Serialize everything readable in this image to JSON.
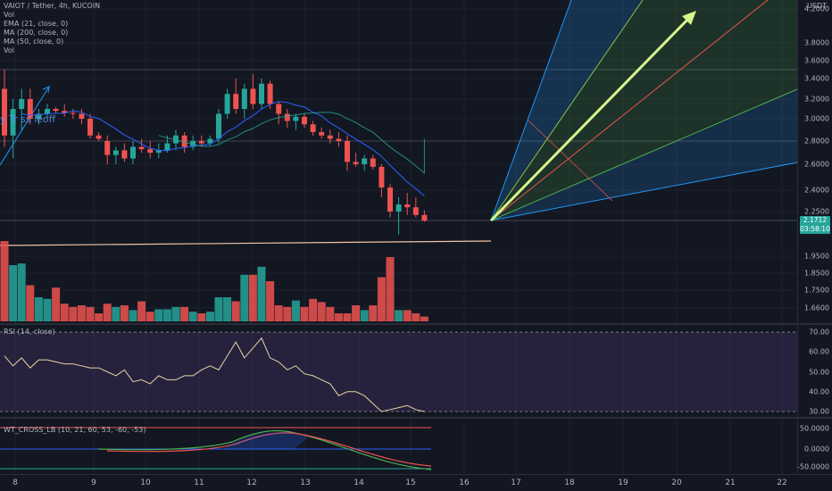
{
  "header": {
    "symbol_line": "VAIOT / Tether, 4h, KUCOIN",
    "indicators": [
      "Vol",
      "EMA (21, close, 0)",
      "MA (200, close, 0)",
      "MA (50, close, 0)",
      "Vol"
    ],
    "currency": "USDT",
    "overlay_text": "y Tr ss    leoff"
  },
  "price_axis": {
    "ticks": [
      "4.2000",
      "3.8000",
      "3.6000",
      "3.4000",
      "3.2000",
      "3.0000",
      "2.8000",
      "2.6000",
      "2.4000",
      "2.2500",
      "1.9500",
      "1.8500",
      "1.7500",
      "1.6600"
    ],
    "current_price": "2.1712",
    "countdown": "03:58:10"
  },
  "rsi": {
    "label": "RSI (14, close)",
    "ticks": [
      "70.00",
      "60.00",
      "50.00",
      "40.00",
      "30.00"
    ]
  },
  "wt": {
    "label": "WT_CROSS_LB (10, 21, 60, 53, -60, -53)",
    "ticks": [
      "50.0000",
      "0.0000",
      "-50.0000"
    ]
  },
  "time_axis": {
    "ticks": [
      "8",
      "9",
      "10",
      "11",
      "12",
      "13",
      "14",
      "15",
      "16",
      "17",
      "18",
      "19",
      "20",
      "21",
      "22"
    ]
  },
  "colors": {
    "up": "#26a69a",
    "down": "#ef5350",
    "background": "#131722",
    "rsi_band": "#7e57c2",
    "arrow": "#d4f58c"
  },
  "candles": [
    {
      "o": 3.3,
      "h": 3.5,
      "l": 2.75,
      "c": 2.85
    },
    {
      "o": 2.85,
      "h": 3.2,
      "l": 2.65,
      "c": 3.1
    },
    {
      "o": 3.1,
      "h": 3.3,
      "l": 2.9,
      "c": 3.2
    },
    {
      "o": 3.2,
      "h": 3.3,
      "l": 2.95,
      "c": 3.0
    },
    {
      "o": 3.0,
      "h": 3.1,
      "l": 2.95,
      "c": 3.05
    },
    {
      "o": 3.05,
      "h": 3.15,
      "l": 3.0,
      "c": 3.1
    },
    {
      "o": 3.1,
      "h": 3.12,
      "l": 3.05,
      "c": 3.08
    },
    {
      "o": 3.08,
      "h": 3.15,
      "l": 3.02,
      "c": 3.06
    },
    {
      "o": 3.06,
      "h": 3.1,
      "l": 3.0,
      "c": 3.05
    },
    {
      "o": 3.05,
      "h": 3.1,
      "l": 2.95,
      "c": 3.0
    },
    {
      "o": 3.0,
      "h": 3.05,
      "l": 2.82,
      "c": 2.85
    },
    {
      "o": 2.85,
      "h": 2.88,
      "l": 2.8,
      "c": 2.82
    },
    {
      "o": 2.8,
      "h": 2.85,
      "l": 2.6,
      "c": 2.68
    },
    {
      "o": 2.68,
      "h": 2.75,
      "l": 2.6,
      "c": 2.72
    },
    {
      "o": 2.72,
      "h": 2.78,
      "l": 2.62,
      "c": 2.65
    },
    {
      "o": 2.65,
      "h": 2.8,
      "l": 2.6,
      "c": 2.75
    },
    {
      "o": 2.75,
      "h": 2.82,
      "l": 2.7,
      "c": 2.73
    },
    {
      "o": 2.73,
      "h": 2.8,
      "l": 2.65,
      "c": 2.7
    },
    {
      "o": 2.7,
      "h": 2.78,
      "l": 2.65,
      "c": 2.72
    },
    {
      "o": 2.72,
      "h": 2.85,
      "l": 2.7,
      "c": 2.78
    },
    {
      "o": 2.78,
      "h": 2.9,
      "l": 2.72,
      "c": 2.85
    },
    {
      "o": 2.85,
      "h": 2.88,
      "l": 2.7,
      "c": 2.75
    },
    {
      "o": 2.75,
      "h": 2.85,
      "l": 2.72,
      "c": 2.8
    },
    {
      "o": 2.8,
      "h": 2.85,
      "l": 2.75,
      "c": 2.78
    },
    {
      "o": 2.78,
      "h": 2.85,
      "l": 2.76,
      "c": 2.82
    },
    {
      "o": 2.82,
      "h": 3.1,
      "l": 2.78,
      "c": 3.05
    },
    {
      "o": 3.05,
      "h": 3.3,
      "l": 3.0,
      "c": 3.25
    },
    {
      "o": 3.25,
      "h": 3.4,
      "l": 3.05,
      "c": 3.1
    },
    {
      "o": 3.1,
      "h": 3.35,
      "l": 3.0,
      "c": 3.3
    },
    {
      "o": 3.3,
      "h": 3.45,
      "l": 3.1,
      "c": 3.15
    },
    {
      "o": 3.15,
      "h": 3.4,
      "l": 3.1,
      "c": 3.35
    },
    {
      "o": 3.35,
      "h": 3.38,
      "l": 3.1,
      "c": 3.15
    },
    {
      "o": 3.15,
      "h": 3.18,
      "l": 2.95,
      "c": 3.05
    },
    {
      "o": 3.05,
      "h": 3.1,
      "l": 2.92,
      "c": 2.98
    },
    {
      "o": 2.98,
      "h": 3.05,
      "l": 2.9,
      "c": 3.02
    },
    {
      "o": 3.02,
      "h": 3.05,
      "l": 2.92,
      "c": 2.95
    },
    {
      "o": 2.95,
      "h": 2.98,
      "l": 2.85,
      "c": 2.88
    },
    {
      "o": 2.88,
      "h": 2.92,
      "l": 2.82,
      "c": 2.85
    },
    {
      "o": 2.85,
      "h": 2.9,
      "l": 2.78,
      "c": 2.82
    },
    {
      "o": 2.82,
      "h": 2.88,
      "l": 2.75,
      "c": 2.8
    },
    {
      "o": 2.8,
      "h": 2.85,
      "l": 2.55,
      "c": 2.62
    },
    {
      "o": 2.62,
      "h": 2.7,
      "l": 2.58,
      "c": 2.6
    },
    {
      "o": 2.6,
      "h": 2.68,
      "l": 2.55,
      "c": 2.65
    },
    {
      "o": 2.65,
      "h": 2.68,
      "l": 2.56,
      "c": 2.58
    },
    {
      "o": 2.58,
      "h": 2.6,
      "l": 2.35,
      "c": 2.42
    },
    {
      "o": 2.42,
      "h": 2.45,
      "l": 2.2,
      "c": 2.25
    },
    {
      "o": 2.25,
      "h": 2.35,
      "l": 2.05,
      "c": 2.3
    },
    {
      "o": 2.3,
      "h": 2.38,
      "l": 2.22,
      "c": 2.28
    },
    {
      "o": 2.28,
      "h": 2.35,
      "l": 2.2,
      "c": 2.22
    },
    {
      "o": 2.22,
      "h": 2.26,
      "l": 2.16,
      "c": 2.17
    }
  ],
  "volumes": [
    1.0,
    0.7,
    0.72,
    0.45,
    0.3,
    0.28,
    0.42,
    0.22,
    0.18,
    0.2,
    0.18,
    0.1,
    0.22,
    0.18,
    0.2,
    0.14,
    0.25,
    0.12,
    0.15,
    0.15,
    0.18,
    0.18,
    0.12,
    0.1,
    0.12,
    0.3,
    0.3,
    0.25,
    0.58,
    0.58,
    0.68,
    0.5,
    0.2,
    0.18,
    0.26,
    0.18,
    0.28,
    0.24,
    0.18,
    0.1,
    0.1,
    0.2,
    0.14,
    0.2,
    0.55,
    0.8,
    0.14,
    0.14,
    0.1,
    0.06
  ],
  "rsi_values": [
    58,
    53,
    57,
    52,
    56,
    56,
    55,
    54,
    54,
    53,
    52,
    52,
    50,
    48,
    51,
    45,
    46,
    44,
    48,
    46,
    46,
    48,
    48,
    51,
    53,
    51,
    58,
    65,
    57,
    62,
    67,
    57,
    55,
    51,
    53,
    49,
    48,
    46,
    44,
    38,
    40,
    40,
    38,
    34,
    30,
    31,
    32,
    33,
    31,
    30
  ]
}
